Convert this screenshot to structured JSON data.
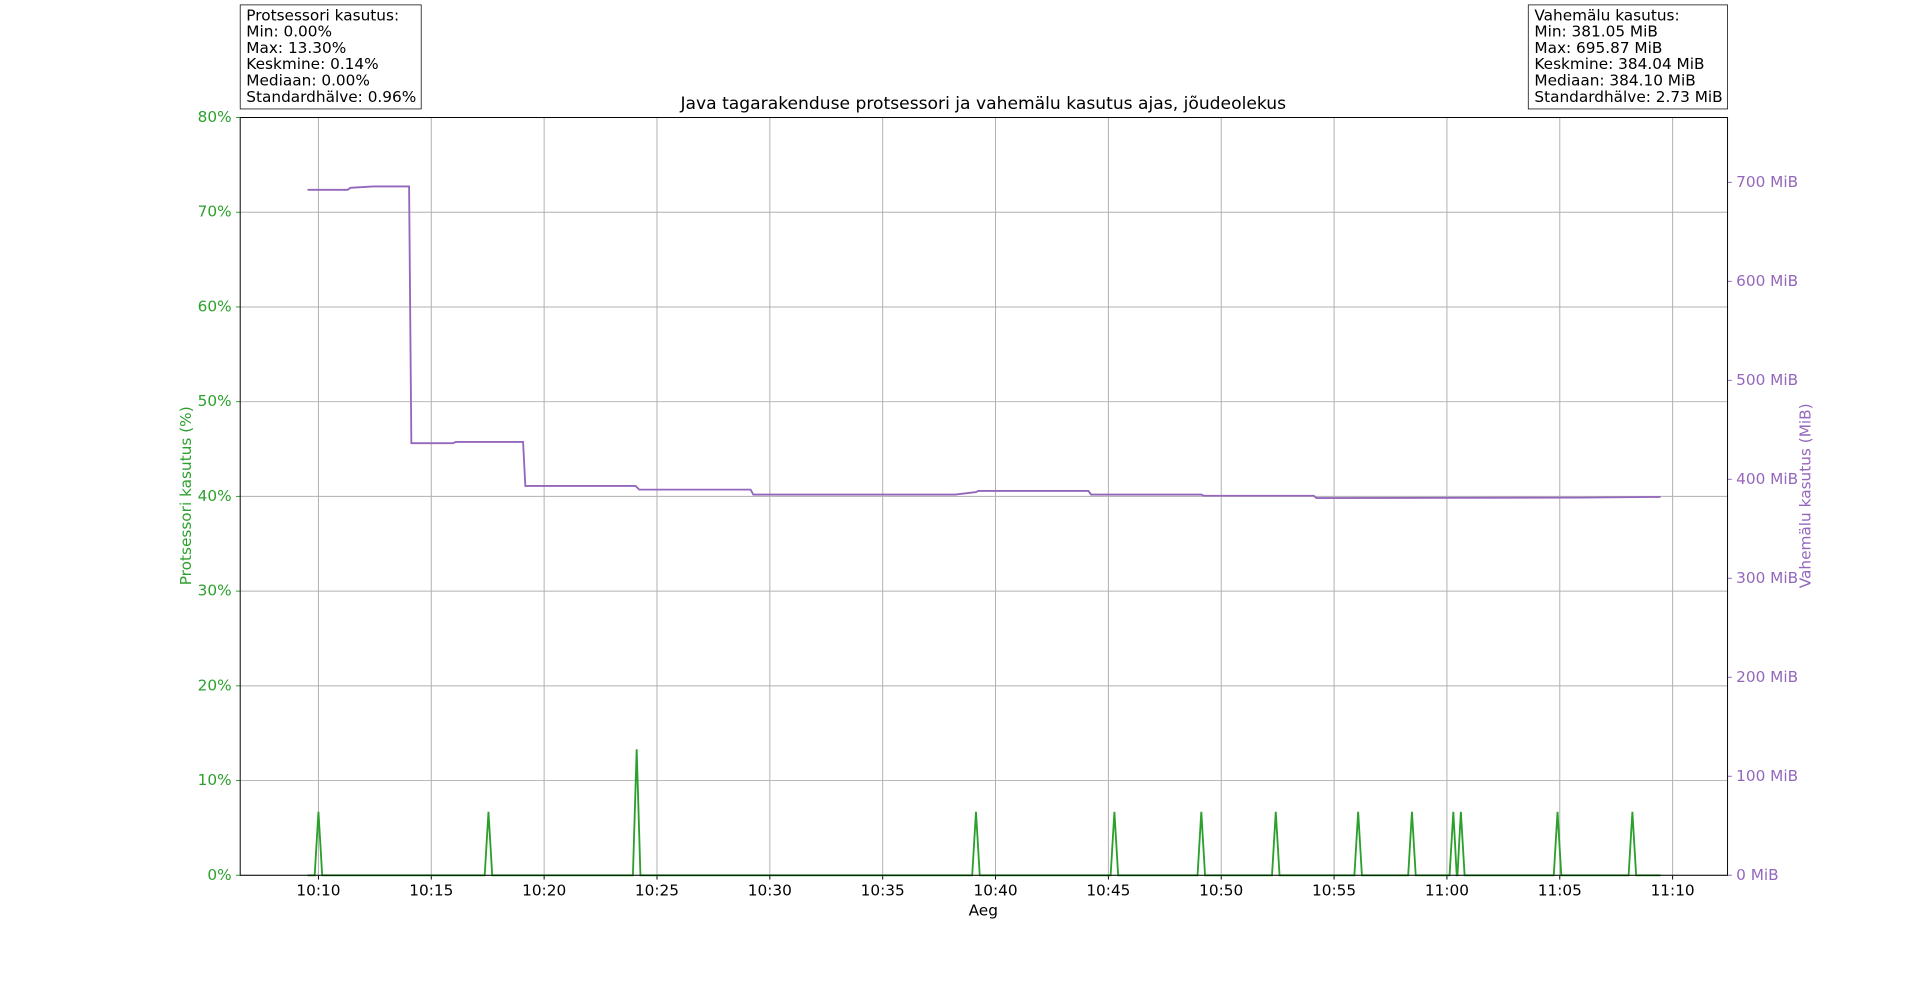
{
  "chart_data": {
    "type": "line",
    "title": "Java tagarakenduse protsessori ja vahemälu kasutus ajas, jõudeolekus",
    "xlabel": "Aeg",
    "ylabel": "Protsessori kasutus (%)",
    "y2label": "Vahemälu kasutus (MiB)",
    "xlim": [
      "10:06:32",
      "11:12:26"
    ],
    "xticks": [
      "10:10",
      "10:15",
      "10:20",
      "10:25",
      "10:30",
      "10:35",
      "10:40",
      "10:45",
      "10:50",
      "10:55",
      "11:00",
      "11:05",
      "11:10"
    ],
    "ylim": [
      0,
      80
    ],
    "yticks": [
      {
        "value": 0,
        "label": "0%"
      },
      {
        "value": 10,
        "label": "10%"
      },
      {
        "value": 20,
        "label": "20%"
      },
      {
        "value": 30,
        "label": "30%"
      },
      {
        "value": 40,
        "label": "40%"
      },
      {
        "value": 50,
        "label": "50%"
      },
      {
        "value": 60,
        "label": "60%"
      },
      {
        "value": 70,
        "label": "70%"
      },
      {
        "value": 80,
        "label": "80%"
      }
    ],
    "y2lim": [
      0,
      765.5
    ],
    "y2ticks": [
      {
        "value": 0,
        "label": "0 MiB"
      },
      {
        "value": 100,
        "label": "100 MiB"
      },
      {
        "value": 200,
        "label": "200 MiB"
      },
      {
        "value": 300,
        "label": "300 MiB"
      },
      {
        "value": 400,
        "label": "400 MiB"
      },
      {
        "value": 500,
        "label": "500 MiB"
      },
      {
        "value": 600,
        "label": "600 MiB"
      },
      {
        "value": 700,
        "label": "700 MiB"
      }
    ],
    "grid": true,
    "ycolor": "#2ca02c",
    "y2color": "#9467bd",
    "series": [
      {
        "color": "#2ca02c",
        "axis": "y",
        "x": [
          "10:09:31",
          "10:09:50",
          "10:10:00",
          "10:10:10",
          "10:17:22",
          "10:17:32",
          "10:17:42",
          "10:23:56",
          "10:24:06",
          "10:24:16",
          "10:38:58",
          "10:39:08",
          "10:39:18",
          "10:45:06",
          "10:45:16",
          "10:45:26",
          "10:48:57",
          "10:49:07",
          "10:49:17",
          "10:52:15",
          "10:52:25",
          "10:52:35",
          "10:55:54",
          "10:56:04",
          "10:56:14",
          "10:58:17",
          "10:58:27",
          "10:58:37",
          "11:00:07",
          "11:00:17",
          "11:00:26",
          "11:00:28",
          "11:00:37",
          "11:00:47",
          "11:04:44",
          "11:04:54",
          "11:05:04",
          "11:08:03",
          "11:08:13",
          "11:08:23",
          "11:09:28"
        ],
        "values": [
          0,
          0,
          6.7,
          0,
          0,
          6.7,
          0,
          0,
          13.3,
          0,
          0,
          6.7,
          0,
          0,
          6.7,
          0,
          0,
          6.7,
          0,
          0,
          6.7,
          0,
          0,
          6.7,
          0,
          0,
          6.7,
          0,
          0,
          6.7,
          0,
          0,
          6.7,
          0,
          0,
          6.7,
          0,
          0,
          6.7,
          0,
          0
        ]
      },
      {
        "color": "#9467bd",
        "axis": "y2",
        "x": [
          "10:09:31",
          "10:11:18",
          "10:11:25",
          "10:12:26",
          "10:14:01",
          "10:14:07",
          "10:15:58",
          "10:16:05",
          "10:19:04",
          "10:19:10",
          "10:24:03",
          "10:24:13",
          "10:29:09",
          "10:29:16",
          "10:38:13",
          "10:39:08",
          "10:39:14",
          "10:44:07",
          "10:44:14",
          "10:49:07",
          "10:49:13",
          "10:54:06",
          "10:54:13",
          "11:05:53",
          "11:09:28"
        ],
        "values": [
          692.5,
          692.5,
          694.5,
          695.9,
          695.9,
          436.5,
          436.5,
          437.8,
          437.8,
          393.3,
          393.3,
          389.6,
          389.6,
          384.6,
          384.6,
          387.1,
          388.3,
          388.3,
          384.6,
          384.6,
          383.4,
          383.4,
          381.05,
          381.5,
          382.2
        ]
      }
    ],
    "annotations": [
      {
        "corner": "upper left",
        "lines": [
          "Protsessori kasutus:",
          "Min: 0.00%",
          "Max: 13.30%",
          "Keskmine: 0.14%",
          "Mediaan: 0.00%",
          "Standardhälve: 0.96%"
        ]
      },
      {
        "corner": "upper right",
        "lines": [
          "Vahemälu kasutus:",
          "Min: 381.05 MiB",
          "Max: 695.87 MiB",
          "Keskmine: 384.04 MiB",
          "Mediaan: 384.10 MiB",
          "Standardhälve: 2.73 MiB"
        ]
      }
    ]
  }
}
